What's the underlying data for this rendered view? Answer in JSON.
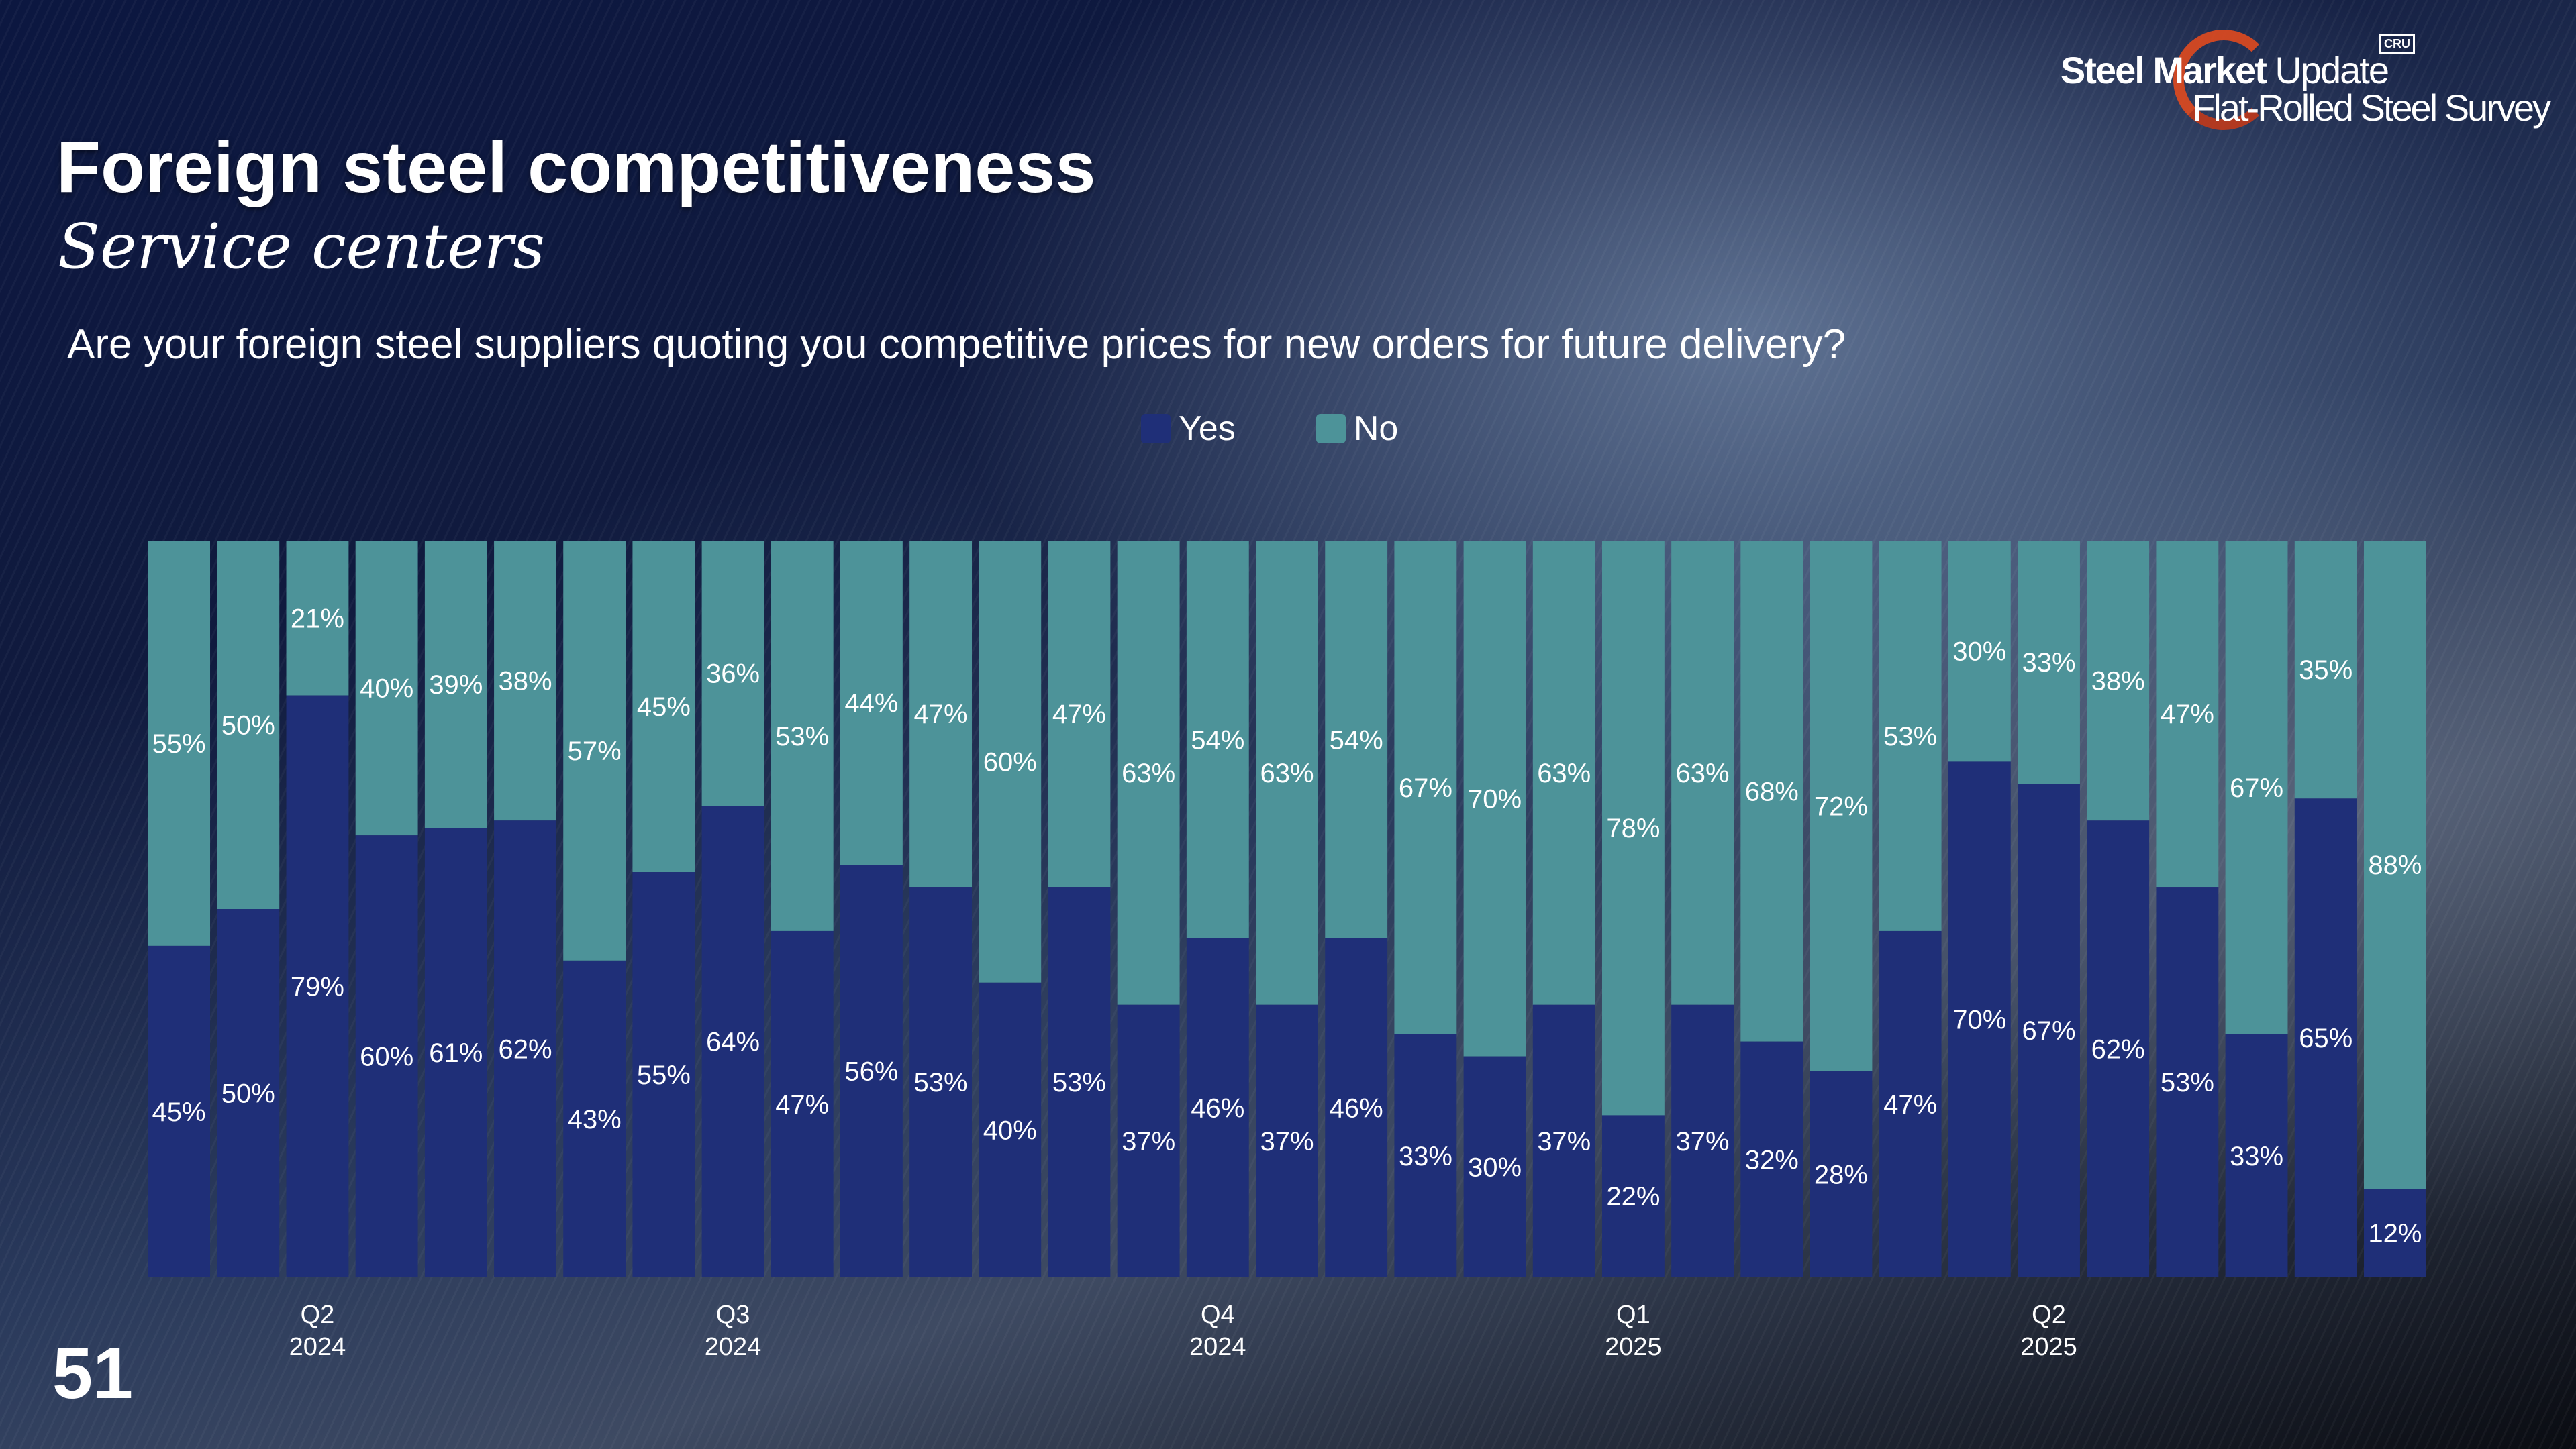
{
  "header": {
    "title": "Foreign steel competitiveness",
    "subtitle": "Service centers"
  },
  "logo": {
    "line1_bold": "Steel Market",
    "line1_light": "Update",
    "line2": "Flat-Rolled Steel Survey",
    "badge": "CRU"
  },
  "question": "Are your foreign steel suppliers quoting you competitive prices for new orders for future delivery?",
  "legend": {
    "yes": "Yes",
    "no": "No"
  },
  "page_number": "51",
  "colors": {
    "yes": "#1f2f78",
    "no": "#4d9399"
  },
  "chart_data": {
    "type": "bar",
    "stacked": true,
    "percent_stacked": true,
    "ylim": [
      0,
      100
    ],
    "series": [
      {
        "name": "Yes",
        "values": [
          45,
          50,
          79,
          60,
          61,
          62,
          43,
          55,
          64,
          47,
          56,
          53,
          40,
          53,
          37,
          46,
          37,
          46,
          33,
          30,
          37,
          22,
          37,
          32,
          28,
          47,
          70,
          67,
          62,
          53,
          33,
          65,
          12
        ]
      },
      {
        "name": "No",
        "values": [
          55,
          50,
          21,
          40,
          39,
          38,
          57,
          45,
          36,
          53,
          44,
          47,
          60,
          47,
          63,
          54,
          63,
          54,
          67,
          70,
          63,
          78,
          63,
          68,
          72,
          53,
          30,
          33,
          38,
          47,
          67,
          35,
          88
        ]
      }
    ],
    "x_ticks": [
      {
        "index": 2,
        "quarter": "Q2",
        "year": "2024"
      },
      {
        "index": 8,
        "quarter": "Q3",
        "year": "2024"
      },
      {
        "index": 15,
        "quarter": "Q4",
        "year": "2024"
      },
      {
        "index": 21,
        "quarter": "Q1",
        "year": "2025"
      },
      {
        "index": 27,
        "quarter": "Q2",
        "year": "2025"
      }
    ],
    "title": "Foreign steel competitiveness",
    "xlabel": "",
    "ylabel": "",
    "grid": false,
    "legend_position": "top-center"
  }
}
